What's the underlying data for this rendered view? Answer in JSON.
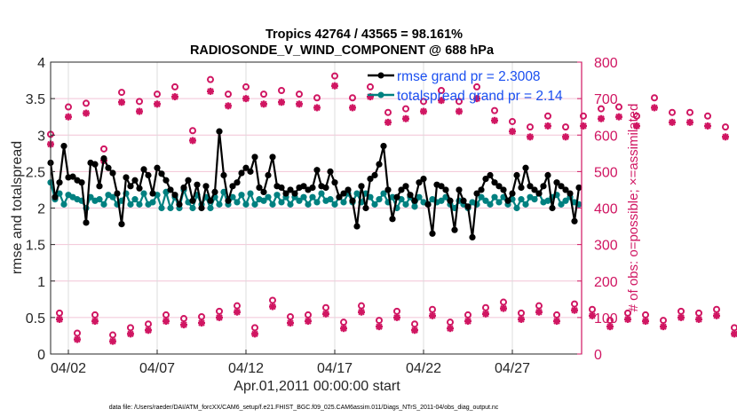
{
  "chart_data": {
    "type": "line",
    "title": "Tropics 42764 / 43565 = 98.161%",
    "subtitle": "RADIOSONDE_V_WIND_COMPONENT @ 688 hPa",
    "xlabel": "Apr.01,2011 00:00:00 start",
    "ylabel": "rmse and totalspread",
    "y2label": "# of obs: o=possible; ×=assimilated",
    "footer": "data file: /Users/raeder/DAI/ATM_forcXX/CAM6_setup/f.e21.FHIST_BGC.f09_025.CAM6assim.011/Diags_NTrS_2011-04/obs_diag_output.nc",
    "xlim_days": [
      0,
      29.9
    ],
    "ylim": [
      0,
      4
    ],
    "y2lim": [
      0,
      800
    ],
    "xticks": [
      {
        "day": 1,
        "label": "04/02"
      },
      {
        "day": 6,
        "label": "04/07"
      },
      {
        "day": 11,
        "label": "04/12"
      },
      {
        "day": 16,
        "label": "04/17"
      },
      {
        "day": 21,
        "label": "04/22"
      },
      {
        "day": 26,
        "label": "04/27"
      }
    ],
    "yticks": [
      "0",
      "0.5",
      "1",
      "1.5",
      "2",
      "2.5",
      "3",
      "3.5",
      "4"
    ],
    "y2ticks": [
      "0",
      "100",
      "200",
      "300",
      "400",
      "500",
      "600",
      "700",
      "800"
    ],
    "grid": true,
    "legend_position": "top-right",
    "legend": [
      {
        "label": "rmse grand pr = 2.3008",
        "color": "#000000"
      },
      {
        "label": "totalspread grand pr = 2.14",
        "color": "#008080"
      }
    ],
    "x_step_days": 0.25,
    "series": [
      {
        "name": "rmse",
        "color": "#000000",
        "values": [
          2.62,
          2.15,
          2.35,
          2.85,
          2.42,
          2.43,
          2.38,
          2.35,
          1.8,
          2.62,
          2.6,
          2.3,
          2.68,
          2.55,
          2.48,
          2.2,
          1.78,
          2.42,
          2.3,
          2.38,
          2.27,
          2.53,
          2.45,
          2.2,
          2.55,
          2.47,
          2.38,
          2.25,
          2.18,
          2.05,
          2.28,
          2.38,
          2.1,
          2.32,
          2.0,
          2.3,
          2.1,
          2.22,
          3.05,
          2.45,
          2.1,
          2.3,
          2.35,
          2.48,
          2.55,
          2.5,
          2.7,
          2.28,
          2.22,
          2.45,
          2.7,
          2.3,
          2.28,
          2.2,
          2.25,
          2.2,
          2.28,
          2.3,
          2.25,
          2.28,
          2.52,
          2.3,
          2.28,
          2.5,
          2.35,
          2.15,
          2.2,
          2.25,
          2.1,
          1.75,
          2.3,
          2.0,
          2.4,
          2.45,
          2.6,
          2.85,
          2.25,
          1.85,
          2.15,
          2.25,
          2.3,
          2.18,
          2.1,
          2.35,
          2.4,
          2.05,
          1.65,
          2.32,
          2.3,
          2.25,
          2.1,
          1.7,
          2.25,
          2.1,
          2.02,
          1.6,
          2.2,
          2.25,
          2.4,
          2.45,
          2.35,
          2.3,
          2.25,
          2.1,
          2.2,
          2.45,
          2.28,
          2.55,
          2.3,
          2.25,
          2.2,
          2.3,
          2.45,
          2.0,
          2.35,
          2.3,
          2.25,
          2.2,
          1.82,
          2.28
        ]
      },
      {
        "name": "totalspread",
        "color": "#008080",
        "values": [
          2.35,
          2.12,
          2.2,
          2.05,
          2.18,
          2.15,
          2.12,
          2.1,
          2.0,
          2.15,
          2.1,
          2.12,
          2.05,
          2.18,
          2.15,
          2.05,
          2.1,
          2.2,
          2.05,
          2.12,
          2.05,
          2.2,
          2.05,
          2.08,
          2.18,
          2.0,
          2.22,
          2.0,
          2.15,
          2.0,
          2.25,
          2.08,
          2.0,
          2.18,
          2.05,
          2.15,
          2.0,
          2.15,
          2.05,
          2.22,
          2.05,
          2.15,
          2.08,
          2.18,
          2.05,
          2.2,
          2.05,
          2.12,
          2.1,
          2.15,
          2.05,
          2.18,
          2.08,
          2.15,
          2.05,
          2.15,
          2.1,
          2.15,
          2.05,
          2.15,
          2.08,
          2.2,
          2.1,
          2.12,
          2.05,
          2.15,
          2.08,
          2.2,
          2.08,
          2.2,
          2.08,
          2.2,
          2.15,
          2.05,
          2.12,
          2.2,
          2.08,
          2.15,
          2.0,
          2.12,
          2.05,
          2.15,
          2.02,
          2.15,
          2.08,
          2.05,
          2.12,
          2.08,
          2.1,
          2.15,
          2.05,
          2.0,
          2.1,
          2.05,
          2.0,
          2.08,
          2.05,
          2.15,
          2.1,
          2.05,
          2.15,
          2.08,
          2.15,
          2.05,
          2.12,
          2.0,
          2.12,
          2.05,
          2.15,
          2.12,
          2.2,
          2.08,
          2.1,
          2.15,
          2.18,
          2.05,
          2.1,
          2.15,
          2.08,
          2.05
        ]
      },
      {
        "name": "obs_possible",
        "color": "#d01662",
        "x_step_days": 0.5,
        "values": [
          590,
          100,
          665,
          45,
          675,
          95,
          550,
          40,
          705,
          60,
          680,
          70,
          700,
          95,
          720,
          85,
          600,
          90,
          740,
          105,
          700,
          120,
          720,
          60,
          700,
          135,
          710,
          90,
          700,
          95,
          690,
          115,
          750,
          75,
          690,
          120,
          720,
          80,
          650,
          105,
          660,
          70,
          680,
          110,
          710,
          75,
          680,
          95,
          720,
          115,
          655,
          130,
          625,
          100,
          610,
          120,
          640,
          95,
          610,
          125,
          640,
          110,
          660,
          80,
          665,
          100,
          640,
          95,
          690,
          80,
          650,
          105,
          650,
          100,
          640,
          110,
          610,
          60,
          620,
          0
        ]
      },
      {
        "name": "obs_assimilated",
        "color": "#d01662",
        "x_step_days": 0.5,
        "values": [
          575,
          95,
          650,
          40,
          660,
          90,
          530,
          35,
          690,
          55,
          665,
          65,
          685,
          90,
          705,
          80,
          585,
          85,
          720,
          100,
          680,
          115,
          700,
          55,
          685,
          130,
          690,
          85,
          685,
          90,
          675,
          110,
          735,
          70,
          675,
          115,
          705,
          75,
          635,
          100,
          645,
          65,
          665,
          105,
          695,
          70,
          665,
          90,
          700,
          110,
          640,
          125,
          610,
          95,
          595,
          115,
          625,
          90,
          595,
          120,
          625,
          105,
          645,
          75,
          650,
          95,
          625,
          90,
          675,
          75,
          635,
          100,
          635,
          95,
          625,
          105,
          595,
          55,
          605,
          0
        ]
      }
    ]
  }
}
